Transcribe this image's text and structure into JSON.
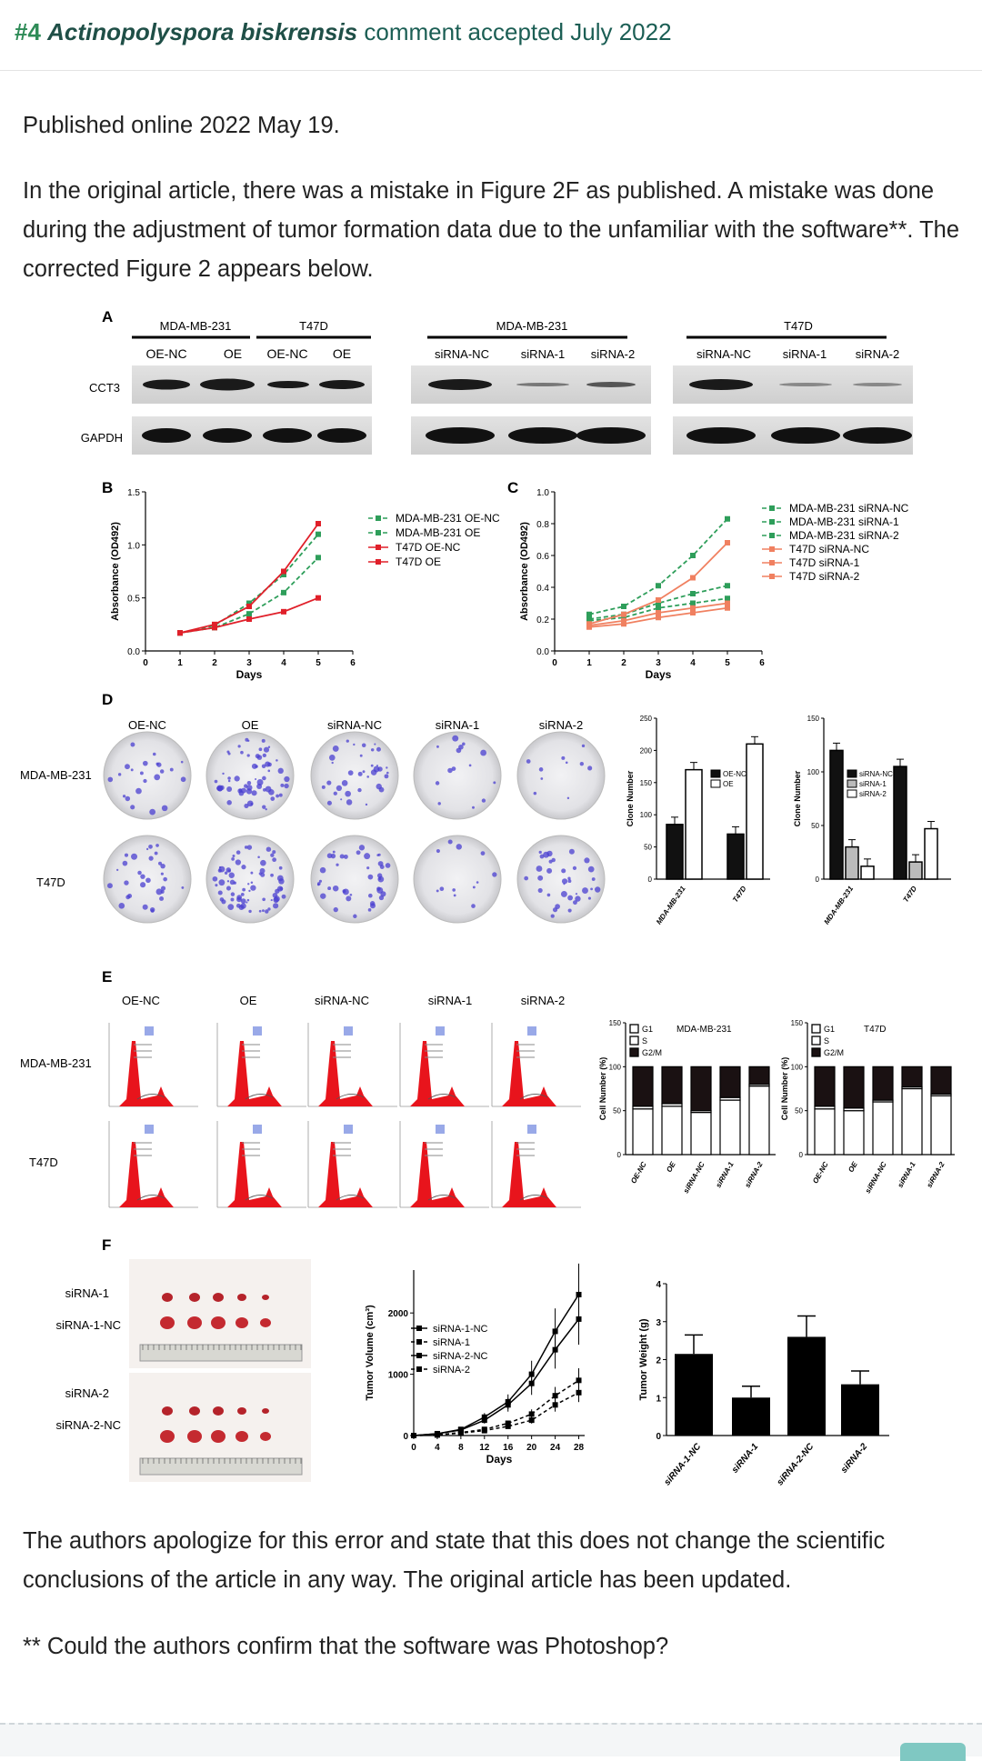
{
  "header": {
    "num": "#4",
    "species": "Actinopolyspora biskrensis",
    "rest": "comment accepted July 2022"
  },
  "body": {
    "published": "Published online 2022 May 19.",
    "para1": "In the original article, there was a mistake in Figure 2F as published. A mistake was done during the adjustment of tumor formation data due to the unfamiliar with the software**. The corrected Figure 2 appears below.",
    "para2": "The authors apologize for this error and state that this does not change the scientific conclusions of the article in any way. The original article has been updated.",
    "para3": "** Could the authors confirm that the software was Photoshop?"
  },
  "figure": {
    "panelA": {
      "letter": "A",
      "group1": "MDA-MB-231",
      "group2": "T47D",
      "group3": "MDA-MB-231",
      "group4": "T47D",
      "lanes_oe": [
        "OE-NC",
        "OE",
        "OE-NC",
        "OE"
      ],
      "lanes_si": [
        "siRNA-NC",
        "siRNA-1",
        "siRNA-2"
      ],
      "row1": "CCT3",
      "row2": "GAPDH"
    },
    "panelB": {
      "letter": "B",
      "ylabel": "Absorbance (OD492)",
      "xlabel": "Days",
      "legend": [
        "MDA-MB-231 OE-NC",
        "MDA-MB-231 OE",
        "T47D OE-NC",
        "T47D OE"
      ],
      "yticks": [
        "0.0",
        "0.5",
        "1.0",
        "1.5"
      ],
      "xticks": [
        "0",
        "1",
        "2",
        "3",
        "4",
        "5",
        "6"
      ]
    },
    "panelC": {
      "letter": "C",
      "ylabel": "Absorbance (OD492)",
      "xlabel": "Days",
      "legend": [
        "MDA-MB-231 siRNA-NC",
        "MDA-MB-231 siRNA-1",
        "MDA-MB-231 siRNA-2",
        "T47D siRNA-NC",
        "T47D siRNA-1",
        "T47D siRNA-2"
      ],
      "yticks": [
        "0.0",
        "0.2",
        "0.4",
        "0.6",
        "0.8",
        "1.0"
      ],
      "xticks": [
        "0",
        "1",
        "2",
        "3",
        "4",
        "5",
        "6"
      ]
    },
    "panelD": {
      "letter": "D",
      "cols": [
        "OE-NC",
        "OE",
        "siRNA-NC",
        "siRNA-1",
        "siRNA-2"
      ],
      "rows": [
        "MDA-MB-231",
        "T47D"
      ],
      "bar_ylabel": "Clone Number",
      "bar1_yticks": [
        "0",
        "50",
        "100",
        "150",
        "200",
        "250"
      ],
      "bar1_legend": [
        "OE-NC",
        "OE"
      ],
      "bar1_x": [
        "MDA-MB-231",
        "T47D"
      ],
      "bar2_yticks": [
        "0",
        "50",
        "100",
        "150"
      ],
      "bar2_legend": [
        "siRNA-NC",
        "siRNA-1",
        "siRNA-2"
      ],
      "bar2_x": [
        "MDA-MB-231",
        "T47D"
      ]
    },
    "panelE": {
      "letter": "E",
      "cols": [
        "OE-NC",
        "OE",
        "siRNA-NC",
        "siRNA-1",
        "siRNA-2"
      ],
      "rows": [
        "MDA-MB-231",
        "T47D"
      ],
      "bar_ylabel": "Cell Number (%)",
      "legend": [
        "G1",
        "S",
        "G2/M"
      ],
      "title1": "MDA-MB-231",
      "title2": "T47D",
      "yticks": [
        "0",
        "50",
        "100",
        "150"
      ],
      "xcats": [
        "OE-NC",
        "OE",
        "siRNA-NC",
        "siRNA-1",
        "siRNA-2"
      ]
    },
    "panelF": {
      "letter": "F",
      "photo_labels": [
        "siRNA-1",
        "siRNA-1-NC",
        "siRNA-2",
        "siRNA-2-NC"
      ],
      "ylabel": "Tumor Volume (cm³)",
      "xlabel": "Days",
      "legend": [
        "siRNA-1-NC",
        "siRNA-1",
        "siRNA-2-NC",
        "siRNA-2"
      ],
      "yticks": [
        "0",
        "1000",
        "2000"
      ],
      "xticks": [
        "0",
        "4",
        "8",
        "12",
        "16",
        "20",
        "24",
        "28"
      ],
      "bar_ylabel": "Tumor Weight (g)",
      "bar_yticks": [
        "0",
        "1",
        "2",
        "3",
        "4"
      ],
      "bar_x": [
        "siRNA-1-NC",
        "siRNA-1",
        "siRNA-2-NC",
        "siRNA-2"
      ]
    }
  },
  "chart_data": [
    {
      "type": "line",
      "xlabel": "Days",
      "ylabel": "Absorbance (OD492)",
      "ylim": [
        0,
        1.5
      ],
      "x": [
        1,
        2,
        3,
        4,
        5
      ],
      "series": [
        {
          "name": "MDA-MB-231 OE-NC",
          "values": [
            0.17,
            0.22,
            0.35,
            0.55,
            0.88
          ],
          "color": "#2e9e5a"
        },
        {
          "name": "MDA-MB-231 OE",
          "values": [
            0.17,
            0.24,
            0.45,
            0.72,
            1.1
          ],
          "color": "#2e9e5a"
        },
        {
          "name": "T47D OE-NC",
          "values": [
            0.17,
            0.22,
            0.3,
            0.37,
            0.5
          ],
          "color": "#e0202a"
        },
        {
          "name": "T47D OE",
          "values": [
            0.17,
            0.25,
            0.42,
            0.75,
            1.2
          ],
          "color": "#e0202a"
        }
      ]
    },
    {
      "type": "line",
      "xlabel": "Days",
      "ylabel": "Absorbance (OD492)",
      "ylim": [
        0,
        1.0
      ],
      "x": [
        1,
        2,
        3,
        4,
        5
      ],
      "series": [
        {
          "name": "MDA-MB-231 siRNA-NC",
          "values": [
            0.23,
            0.28,
            0.41,
            0.6,
            0.83
          ],
          "color": "#2e9e5a"
        },
        {
          "name": "MDA-MB-231 siRNA-1",
          "values": [
            0.2,
            0.23,
            0.3,
            0.36,
            0.41
          ],
          "color": "#2e9e5a"
        },
        {
          "name": "MDA-MB-231 siRNA-2",
          "values": [
            0.19,
            0.21,
            0.27,
            0.3,
            0.33
          ],
          "color": "#2e9e5a"
        },
        {
          "name": "T47D siRNA-NC",
          "values": [
            0.17,
            0.23,
            0.32,
            0.46,
            0.68
          ],
          "color": "#f08060"
        },
        {
          "name": "T47D siRNA-1",
          "values": [
            0.16,
            0.19,
            0.24,
            0.27,
            0.3
          ],
          "color": "#f08060"
        },
        {
          "name": "T47D siRNA-2",
          "values": [
            0.15,
            0.17,
            0.21,
            0.24,
            0.27
          ],
          "color": "#f08060"
        }
      ]
    },
    {
      "type": "bar",
      "categories": [
        "MDA-MB-231",
        "T47D"
      ],
      "ylabel": "Clone Number",
      "ylim": [
        0,
        250
      ],
      "series": [
        {
          "name": "OE-NC",
          "values": [
            85,
            70
          ]
        },
        {
          "name": "OE",
          "values": [
            170,
            210
          ]
        }
      ]
    },
    {
      "type": "bar",
      "categories": [
        "MDA-MB-231",
        "T47D"
      ],
      "ylabel": "Clone Number",
      "ylim": [
        0,
        150
      ],
      "series": [
        {
          "name": "siRNA-NC",
          "values": [
            120,
            105
          ]
        },
        {
          "name": "siRNA-1",
          "values": [
            30,
            16
          ]
        },
        {
          "name": "siRNA-2",
          "values": [
            12,
            47
          ]
        }
      ]
    },
    {
      "type": "bar",
      "title": "MDA-MB-231",
      "ylabel": "Cell Number (%)",
      "ylim": [
        0,
        150
      ],
      "categories": [
        "OE-NC",
        "OE",
        "siRNA-NC",
        "siRNA-1",
        "siRNA-2"
      ],
      "series": [
        {
          "name": "G1",
          "values": [
            52,
            55,
            48,
            62,
            78
          ]
        },
        {
          "name": "S",
          "values": [
            3,
            3,
            2,
            3,
            2
          ]
        },
        {
          "name": "G2/M",
          "values": [
            45,
            42,
            50,
            35,
            20
          ]
        }
      ]
    },
    {
      "type": "bar",
      "title": "T47D",
      "ylabel": "Cell Number (%)",
      "ylim": [
        0,
        150
      ],
      "categories": [
        "OE-NC",
        "OE",
        "siRNA-NC",
        "siRNA-1",
        "siRNA-2"
      ],
      "series": [
        {
          "name": "G1",
          "values": [
            52,
            50,
            60,
            75,
            67
          ]
        },
        {
          "name": "S",
          "values": [
            3,
            3,
            2,
            2,
            2
          ]
        },
        {
          "name": "G2/M",
          "values": [
            45,
            47,
            38,
            23,
            31
          ]
        }
      ]
    },
    {
      "type": "line",
      "xlabel": "Days",
      "ylabel": "Tumor Volume (cm³)",
      "ylim": [
        0,
        2700
      ],
      "x": [
        0,
        4,
        8,
        12,
        16,
        20,
        24,
        28
      ],
      "series": [
        {
          "name": "siRNA-1-NC",
          "values": [
            0,
            30,
            100,
            300,
            550,
            1000,
            1700,
            2300
          ]
        },
        {
          "name": "siRNA-1",
          "values": [
            0,
            10,
            40,
            80,
            150,
            250,
            500,
            700
          ]
        },
        {
          "name": "siRNA-2-NC",
          "values": [
            0,
            30,
            90,
            250,
            500,
            850,
            1400,
            1900
          ]
        },
        {
          "name": "siRNA-2",
          "values": [
            0,
            10,
            50,
            100,
            200,
            350,
            650,
            900
          ]
        }
      ]
    },
    {
      "type": "bar",
      "categories": [
        "siRNA-1-NC",
        "siRNA-1",
        "siRNA-2-NC",
        "siRNA-2"
      ],
      "ylabel": "Tumor Weight (g)",
      "ylim": [
        0,
        4
      ],
      "values": [
        2.15,
        1.0,
        2.6,
        1.35
      ],
      "errors": [
        0.5,
        0.3,
        0.55,
        0.35
      ]
    }
  ]
}
